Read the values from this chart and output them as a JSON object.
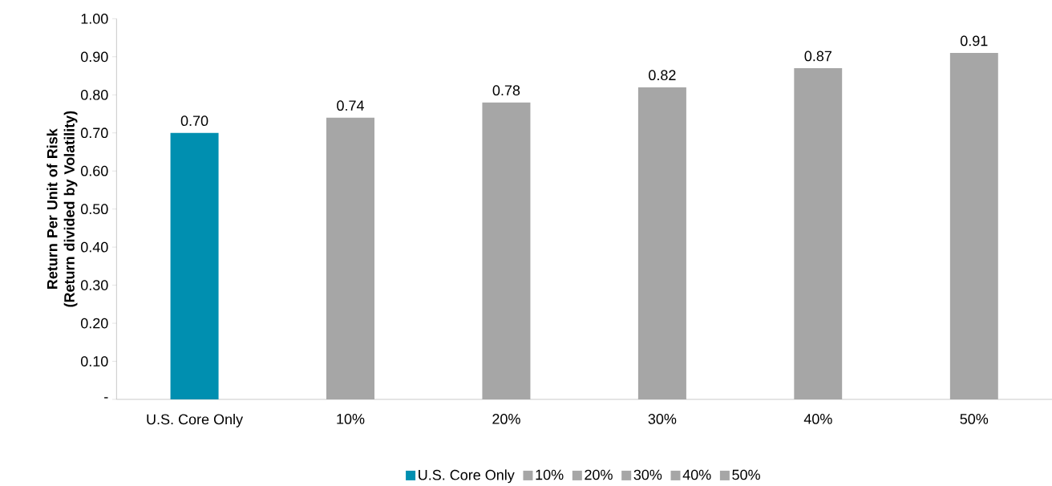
{
  "chart_data": {
    "type": "bar",
    "ylabel": "Return Per Unit of Risk (Return divided by Volatility)",
    "categories": [
      "U.S. Core Only",
      "10%",
      "20%",
      "30%",
      "40%",
      "50%"
    ],
    "series": [
      {
        "name": "U.S. Core Only",
        "color": "#008fb0",
        "values": [
          0.7,
          null,
          null,
          null,
          null,
          null
        ],
        "value_labels": [
          "0.70",
          null,
          null,
          null,
          null,
          null
        ]
      },
      {
        "name": "10%",
        "color": "#a6a6a6",
        "values": [
          null,
          0.74,
          null,
          null,
          null,
          null
        ],
        "value_labels": [
          null,
          "0.74",
          null,
          null,
          null,
          null
        ]
      },
      {
        "name": "20%",
        "color": "#a6a6a6",
        "values": [
          null,
          null,
          0.78,
          null,
          null,
          null
        ],
        "value_labels": [
          null,
          null,
          "0.78",
          null,
          null,
          null
        ]
      },
      {
        "name": "30%",
        "color": "#a6a6a6",
        "values": [
          null,
          null,
          null,
          0.82,
          null,
          null
        ],
        "value_labels": [
          null,
          null,
          null,
          "0.82",
          null,
          null
        ]
      },
      {
        "name": "40%",
        "color": "#a6a6a6",
        "values": [
          null,
          null,
          null,
          null,
          0.87,
          null
        ],
        "value_labels": [
          null,
          null,
          null,
          null,
          "0.87",
          null
        ]
      },
      {
        "name": "50%",
        "color": "#a6a6a6",
        "values": [
          null,
          null,
          null,
          null,
          null,
          0.91
        ],
        "value_labels": [
          null,
          null,
          null,
          null,
          null,
          "0.91"
        ]
      }
    ],
    "ylim": [
      0,
      1.0
    ],
    "yticks": [
      {
        "value": 0,
        "label": "-"
      },
      {
        "value": 0.1,
        "label": "0.10"
      },
      {
        "value": 0.2,
        "label": "0.20"
      },
      {
        "value": 0.3,
        "label": "0.30"
      },
      {
        "value": 0.4,
        "label": "0.40"
      },
      {
        "value": 0.5,
        "label": "0.50"
      },
      {
        "value": 0.6,
        "label": "0.60"
      },
      {
        "value": 0.7,
        "label": "0.70"
      },
      {
        "value": 0.8,
        "label": "0.80"
      },
      {
        "value": 0.9,
        "label": "0.90"
      },
      {
        "value": 1.0,
        "label": "1.00"
      }
    ],
    "grid": false,
    "legend": "bottom"
  }
}
